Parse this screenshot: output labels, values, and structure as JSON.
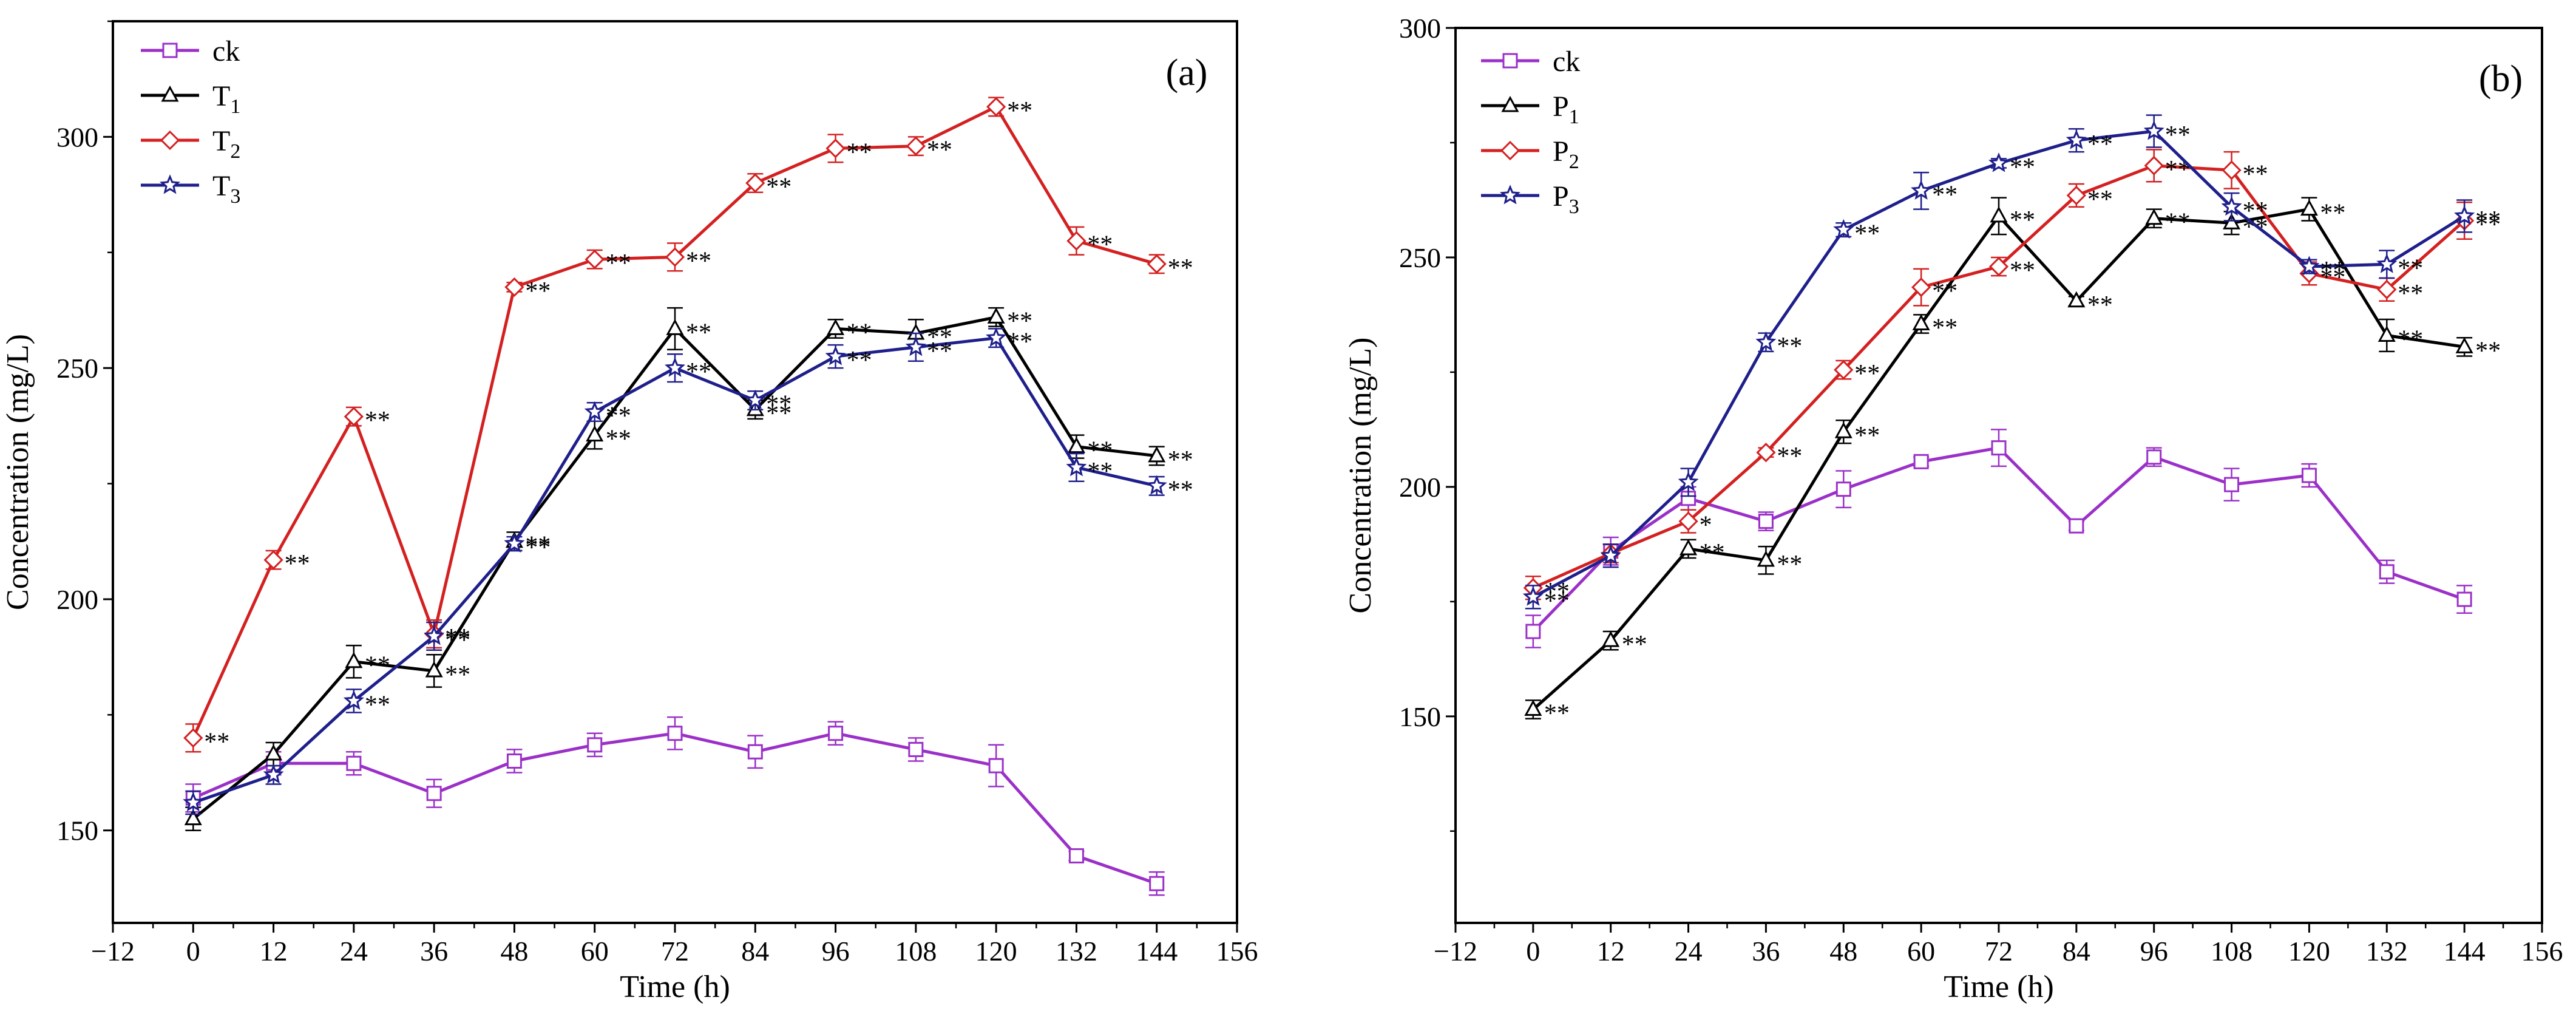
{
  "chart_data": [
    {
      "type": "line",
      "panel_label": "(a)",
      "xlabel": "Time (h)",
      "ylabel": "Concentration (mg/L)",
      "xlim": [
        -12,
        156
      ],
      "ylim": [
        130,
        325
      ],
      "xticks": [
        -12,
        0,
        12,
        24,
        36,
        48,
        60,
        72,
        84,
        96,
        108,
        120,
        132,
        144,
        156
      ],
      "yticks": [
        150,
        200,
        250,
        300
      ],
      "x": [
        0,
        12,
        24,
        36,
        48,
        60,
        72,
        84,
        96,
        108,
        120,
        132,
        144
      ],
      "legend_position": "top-left",
      "series": [
        {
          "name": "ck",
          "base": "ck",
          "sub": "",
          "color": "#9B30C8",
          "marker": "square",
          "values": [
            157,
            164.5,
            164.5,
            158,
            165,
            168.5,
            171,
            167,
            171,
            167.5,
            164,
            144.5,
            138.5
          ],
          "errors": [
            3,
            2.5,
            2.5,
            3,
            2.5,
            2.5,
            3.5,
            3.5,
            2.5,
            2.5,
            4.5,
            1,
            2.5
          ],
          "sig": [
            null,
            null,
            null,
            null,
            null,
            null,
            null,
            null,
            null,
            null,
            null,
            null,
            null
          ]
        },
        {
          "name": "T1",
          "base": "T",
          "sub": "1",
          "color": "#000000",
          "marker": "triangle",
          "values": [
            152.5,
            166.5,
            186.5,
            184.5,
            212.5,
            235.5,
            258.5,
            241,
            258.5,
            257.5,
            261,
            233,
            231
          ],
          "errors": [
            2.5,
            2.5,
            3.5,
            3.5,
            2,
            3,
            4.5,
            2,
            2,
            3,
            2,
            2.5,
            2
          ],
          "sig": [
            null,
            null,
            "**",
            "**",
            "**",
            "**",
            "**",
            "**",
            "**",
            "**",
            "**",
            "**",
            "**"
          ]
        },
        {
          "name": "T2",
          "base": "T",
          "sub": "2",
          "color": "#D42020",
          "marker": "diamond",
          "values": [
            170,
            208.5,
            239.5,
            192.5,
            267.5,
            273.5,
            274,
            290,
            297.5,
            298,
            306.5,
            277.5,
            272.5
          ],
          "errors": [
            3,
            2,
            2,
            3,
            1,
            2,
            3,
            2,
            3,
            2,
            2,
            3,
            2
          ],
          "sig": [
            "**",
            "**",
            "**",
            "**",
            "**",
            "**",
            "**",
            "**",
            "**",
            "**",
            "**",
            "**",
            "**"
          ]
        },
        {
          "name": "T3",
          "base": "T",
          "sub": "3",
          "color": "#1F1F8C",
          "marker": "star",
          "values": [
            156,
            162,
            178,
            192,
            212,
            240.5,
            250,
            243,
            252.5,
            254.5,
            256.5,
            228.5,
            224.5
          ],
          "errors": [
            2.5,
            2,
            2.5,
            3,
            1.5,
            2,
            3,
            2,
            2.5,
            3,
            2,
            3,
            2
          ],
          "sig": [
            null,
            null,
            "**",
            "**",
            "**",
            "**",
            "**",
            "**",
            "**",
            "**",
            "**",
            "**",
            "**"
          ]
        }
      ]
    },
    {
      "type": "line",
      "panel_label": "(b)",
      "xlabel": "Time (h)",
      "ylabel": "Concentration (mg/L)",
      "xlim": [
        -12,
        156
      ],
      "ylim": [
        105,
        300
      ],
      "xticks": [
        -12,
        0,
        12,
        24,
        36,
        48,
        60,
        72,
        84,
        96,
        108,
        120,
        132,
        144,
        156
      ],
      "yticks": [
        150,
        200,
        250,
        300
      ],
      "x": [
        0,
        12,
        24,
        36,
        48,
        60,
        72,
        84,
        96,
        108,
        120,
        132,
        144
      ],
      "legend_position": "top-left",
      "series": [
        {
          "name": "ck",
          "base": "ck",
          "sub": "",
          "color": "#9B30C8",
          "marker": "square",
          "values": [
            168.5,
            186,
            197.5,
            192.5,
            199.5,
            205.5,
            208.5,
            191.5,
            206.5,
            200.5,
            202.5,
            181.5,
            175.5
          ],
          "errors": [
            3.5,
            3,
            2.5,
            2,
            4,
            1,
            4,
            1,
            2,
            3.5,
            2.5,
            2.5,
            3
          ],
          "sig": [
            null,
            null,
            null,
            null,
            null,
            null,
            null,
            null,
            null,
            null,
            null,
            null,
            null
          ]
        },
        {
          "name": "P1",
          "base": "P",
          "sub": "1",
          "color": "#000000",
          "marker": "triangle",
          "values": [
            151.5,
            166.5,
            186.5,
            184,
            212,
            235.5,
            259,
            240.5,
            258.5,
            257.5,
            260.5,
            233,
            230.5
          ],
          "errors": [
            2,
            2,
            2,
            3,
            2.5,
            2,
            4,
            1,
            2,
            2.5,
            2.5,
            3.5,
            2
          ],
          "sig": [
            "**",
            "**",
            "**",
            "**",
            "**",
            "**",
            "**",
            "**",
            "**",
            "**",
            "**",
            "**",
            "**"
          ]
        },
        {
          "name": "P2",
          "base": "P",
          "sub": "2",
          "color": "#D42020",
          "marker": "diamond",
          "values": [
            178,
            185.5,
            192.5,
            207.5,
            225.5,
            243.5,
            248,
            263.5,
            270,
            269,
            246.5,
            243,
            258
          ],
          "errors": [
            2.5,
            2,
            2.5,
            1,
            2,
            4,
            2,
            2.5,
            3.5,
            4,
            2.5,
            2.5,
            4
          ],
          "sig": [
            "**",
            null,
            "*",
            "**",
            "**",
            "**",
            "**",
            "**",
            "**",
            "**",
            "**",
            "**",
            "**"
          ]
        },
        {
          "name": "P3",
          "base": "P",
          "sub": "3",
          "color": "#1F1F8C",
          "marker": "star",
          "values": [
            176,
            185,
            201,
            231.5,
            256,
            264.5,
            270.5,
            275.5,
            277.5,
            261,
            248,
            248.5,
            259
          ],
          "errors": [
            2.5,
            2.5,
            3,
            2,
            1.5,
            4,
            1,
            2.5,
            3.5,
            3,
            1.5,
            3,
            3.5
          ],
          "sig": [
            "**",
            null,
            null,
            "**",
            "**",
            "**",
            "**",
            "**",
            "**",
            "**",
            "**",
            "**",
            "**"
          ]
        }
      ]
    }
  ]
}
